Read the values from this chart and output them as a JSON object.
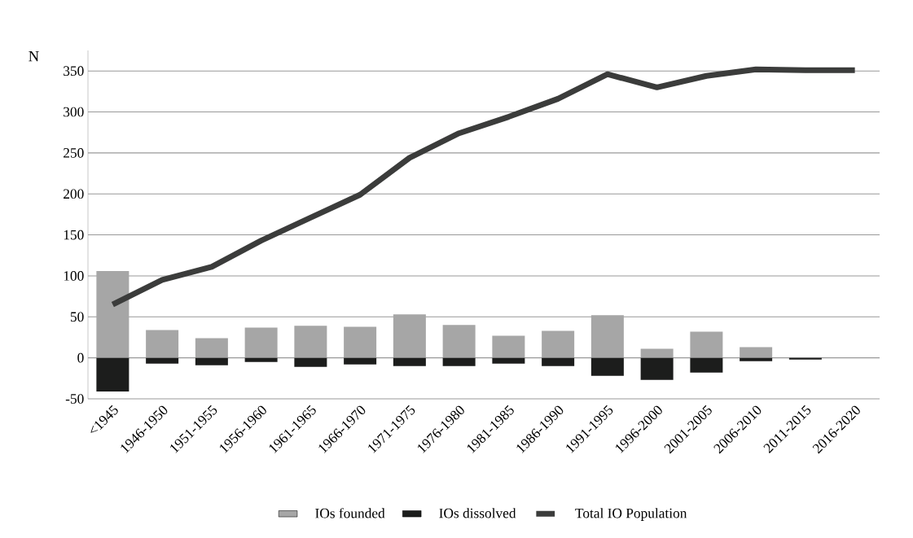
{
  "chart_data": {
    "type": "bar",
    "ylabel": "N",
    "stacked": true,
    "categories": [
      "<1945",
      "1946-1950",
      "1951-1955",
      "1956-1960",
      "1961-1965",
      "1966-1970",
      "1971-1975",
      "1976-1980",
      "1981-1985",
      "1986-1990",
      "1991-1995",
      "1996-2000",
      "2001-2005",
      "2006-2010",
      "2011-2015",
      "2016-2020"
    ],
    "series": [
      {
        "name": "IOs founded",
        "color": "#a6a6a6",
        "values": [
          106,
          34,
          24,
          37,
          39,
          38,
          53,
          40,
          27,
          33,
          52,
          11,
          32,
          13,
          0,
          0
        ]
      },
      {
        "name": "IOs dissolved",
        "color": "#1c1d1c",
        "values": [
          -41,
          -7,
          -9,
          -5,
          -11,
          -8,
          -10,
          -10,
          -7,
          -10,
          -22,
          -27,
          -18,
          -4,
          -2,
          0
        ]
      },
      {
        "name": "Total IO Population",
        "type": "line",
        "color": "#3b3c3b",
        "values": [
          65,
          95,
          111,
          143,
          171,
          199,
          244,
          274,
          294,
          316,
          346,
          330,
          344,
          352,
          351,
          351
        ]
      }
    ],
    "ylim": [
      -50,
      375
    ],
    "yticks": [
      -50,
      0,
      50,
      100,
      150,
      200,
      250,
      300,
      350
    ],
    "grid": "y",
    "legend": "bottom"
  }
}
